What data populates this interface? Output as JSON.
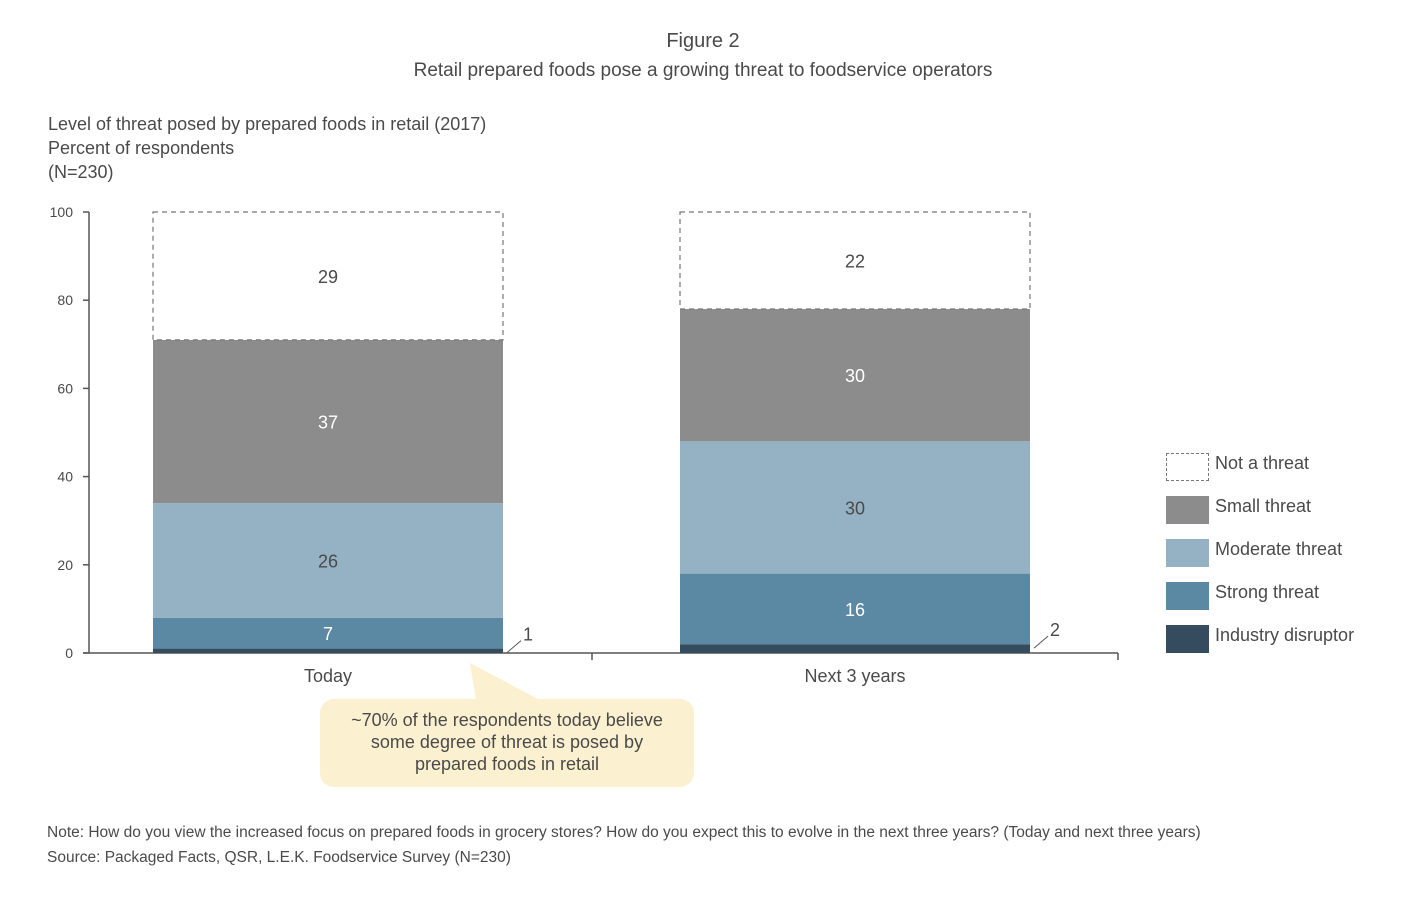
{
  "figure": {
    "label": "Figure 2",
    "title": "Retail prepared foods pose a growing threat to foodservice operators"
  },
  "subtitle": {
    "line1": "Level of threat posed by prepared foods in retail (2017)",
    "line2": "Percent of respondents",
    "line3": "(N=230)"
  },
  "chart_data": {
    "type": "bar",
    "stacked": true,
    "categories": [
      "Today",
      "Next 3 years"
    ],
    "series": [
      {
        "name": "Industry disruptor",
        "values": [
          1,
          2
        ],
        "color": "#344c5e",
        "outside_label": true
      },
      {
        "name": "Strong threat",
        "values": [
          7,
          16
        ],
        "color": "#5b88a3"
      },
      {
        "name": "Moderate threat",
        "values": [
          26,
          30
        ],
        "color": "#95b1c4"
      },
      {
        "name": "Small threat",
        "values": [
          37,
          30
        ],
        "color": "#8c8c8c"
      },
      {
        "name": "Not a threat",
        "values": [
          29,
          22
        ],
        "color": "#ffffff",
        "dashed": true
      }
    ],
    "legend_order": [
      "Not a threat",
      "Small threat",
      "Moderate threat",
      "Strong threat",
      "Industry disruptor"
    ],
    "ylim": [
      0,
      100
    ],
    "yticks": [
      0,
      20,
      40,
      60,
      80,
      100
    ],
    "grid": false,
    "legend_position": "right"
  },
  "callout": {
    "line1": "~70% of the respondents today believe",
    "line2": "some degree of threat is posed by",
    "line3": "prepared foods in retail"
  },
  "footer": {
    "note": "Note: How do you view the increased focus on prepared foods in grocery stores? How do you expect this to evolve in the next three years? (Today and next three years)",
    "source": "Source: Packaged Facts, QSR, L.E.K. Foodservice Survey (N=230)"
  }
}
